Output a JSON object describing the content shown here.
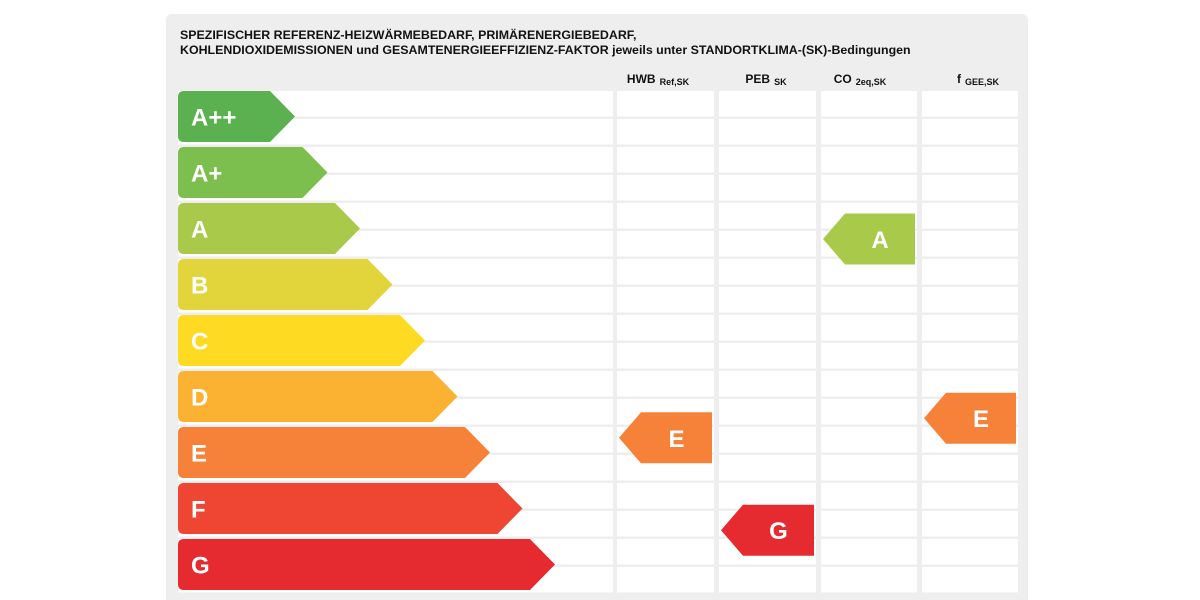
{
  "title": {
    "line1": "SPEZIFISCHER REFERENZ-HEIZWÄRMEBEDARF, PRIMÄRENERGIEBEDARF,",
    "line2": "KOHLENDIOXIDEMISSIONEN und GESAMTENERGIEEFFIZIENZ-FAKTOR jeweils unter STANDORTKLIMA-(SK)-Bedingungen"
  },
  "chart_data": {
    "type": "table",
    "classes": [
      "A++",
      "A+",
      "A",
      "B",
      "C",
      "D",
      "E",
      "F",
      "G"
    ],
    "class_colors": [
      "#5bb14f",
      "#7dbf4f",
      "#a8c94a",
      "#e2d53c",
      "#fedb22",
      "#fbb233",
      "#f6823a",
      "#ee4632",
      "#e52a30"
    ],
    "columns": [
      {
        "main": "HWB",
        "sub": "Ref,SK"
      },
      {
        "main": "PEB",
        "sub": "SK"
      },
      {
        "main": "CO",
        "sub": "2eq,SK"
      },
      {
        "main": "f",
        "sub": "GEE,SK"
      }
    ],
    "ratings": [
      {
        "column": "HWB",
        "class": "E",
        "position": 6.3
      },
      {
        "column": "PEB",
        "class": "G",
        "position": 7.95
      },
      {
        "column": "CO",
        "class": "A",
        "position": 2.75
      },
      {
        "column": "f",
        "class": "E",
        "position": 5.95
      }
    ]
  }
}
